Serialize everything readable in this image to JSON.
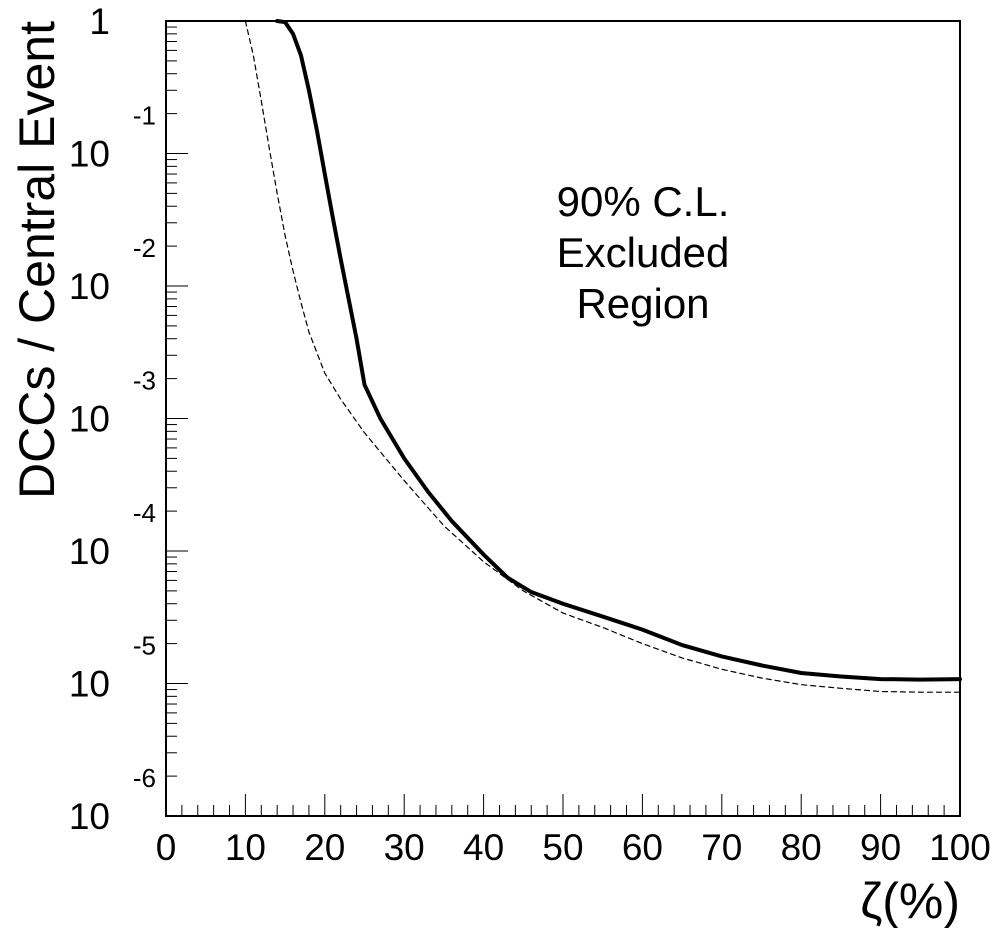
{
  "chart_data": {
    "type": "line",
    "xlabel": "ζ(%)",
    "ylabel": "DCCs / Central Event",
    "xlim": [
      0,
      100
    ],
    "ylim": [
      1e-06,
      1
    ],
    "yscale": "log",
    "grid": false,
    "x_ticks": [
      "0",
      "10",
      "20",
      "30",
      "40",
      "50",
      "60",
      "70",
      "80",
      "90",
      "100"
    ],
    "y_ticks": [
      {
        "base": "1",
        "exp": ""
      },
      {
        "base": "10",
        "exp": "-1"
      },
      {
        "base": "10",
        "exp": "-2"
      },
      {
        "base": "10",
        "exp": "-3"
      },
      {
        "base": "10",
        "exp": "-4"
      },
      {
        "base": "10",
        "exp": "-5"
      },
      {
        "base": "10",
        "exp": "-6"
      }
    ],
    "annotation": [
      "90% C.L.",
      "Excluded",
      "Region"
    ],
    "series": [
      {
        "style": "solid",
        "x": [
          14,
          15,
          16,
          17,
          18,
          19,
          20,
          21,
          22,
          23,
          24,
          25,
          27,
          30,
          33,
          36,
          40,
          43,
          46,
          50,
          55,
          60,
          65,
          70,
          75,
          80,
          85,
          90,
          95,
          100
        ],
        "y": [
          1.0,
          0.98,
          0.8,
          0.55,
          0.3,
          0.15,
          0.07,
          0.033,
          0.016,
          0.008,
          0.004,
          0.0018,
          0.001,
          0.0005,
          0.00028,
          0.000168,
          9.4e-05,
          6.3e-05,
          4.9e-05,
          4e-05,
          3.2e-05,
          2.55e-05,
          1.95e-05,
          1.6e-05,
          1.37e-05,
          1.2e-05,
          1.13e-05,
          1.08e-05,
          1.07e-05,
          1.08e-05
        ]
      },
      {
        "style": "dashed",
        "x": [
          10,
          11,
          12,
          13,
          14,
          15,
          16,
          17,
          18,
          20,
          22,
          25,
          30,
          35,
          40,
          45,
          50,
          55,
          60,
          65,
          70,
          75,
          80,
          85,
          90,
          95,
          100
        ],
        "y": [
          1.0,
          0.55,
          0.25,
          0.11,
          0.05,
          0.024,
          0.013,
          0.0075,
          0.0045,
          0.0022,
          0.0014,
          0.00078,
          0.00034,
          0.000155,
          8.3e-05,
          5e-05,
          3.4e-05,
          2.65e-05,
          2e-05,
          1.56e-05,
          1.28e-05,
          1.1e-05,
          9.8e-06,
          9.2e-06,
          8.7e-06,
          8.6e-06,
          8.6e-06
        ]
      }
    ]
  }
}
